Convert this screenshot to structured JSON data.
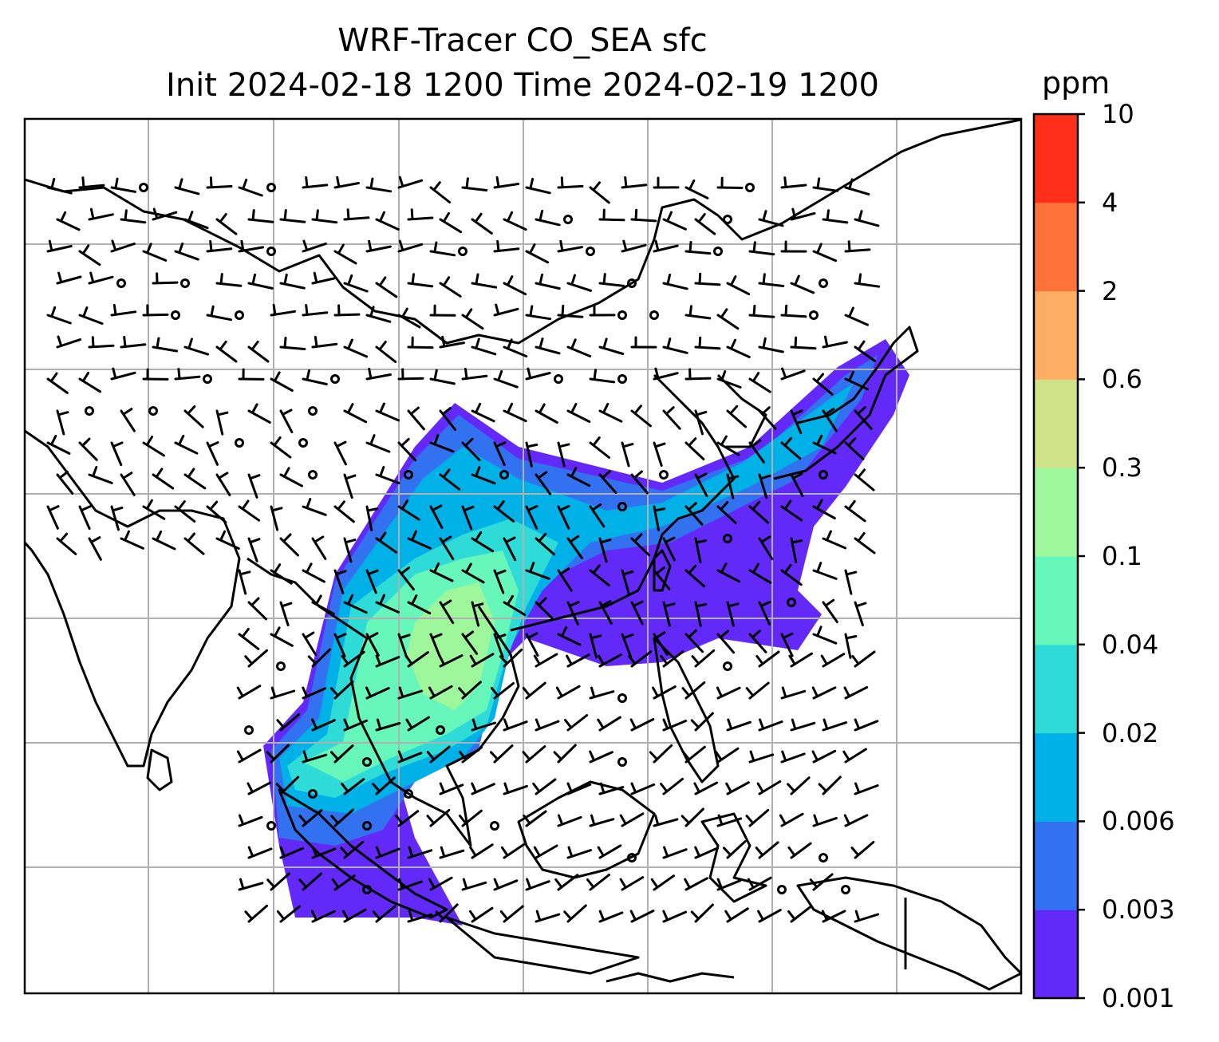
{
  "title": {
    "line1": "WRF-Tracer CO_SEA sfc",
    "line2": "Init 2024-02-18 1200 Time 2024-02-19 1200"
  },
  "colorbar": {
    "units": "ppm",
    "levels": [
      "0.001",
      "0.003",
      "0.006",
      "0.02",
      "0.04",
      "0.1",
      "0.3",
      "0.6",
      "2",
      "4",
      "10"
    ],
    "colors": [
      "#6229f8",
      "#3272f1",
      "#00b1e8",
      "#2fdbd6",
      "#67f7bb",
      "#9ef89b",
      "#cfe288",
      "#feae62",
      "#fe733a",
      "#ff2f19"
    ]
  },
  "map": {
    "projection": "Lambert (WRF domain)",
    "region": "South-East Asia / East Asia",
    "gridlines": true,
    "coastline_color": "#000000",
    "gridline_color": "#b0b0b0"
  }
}
